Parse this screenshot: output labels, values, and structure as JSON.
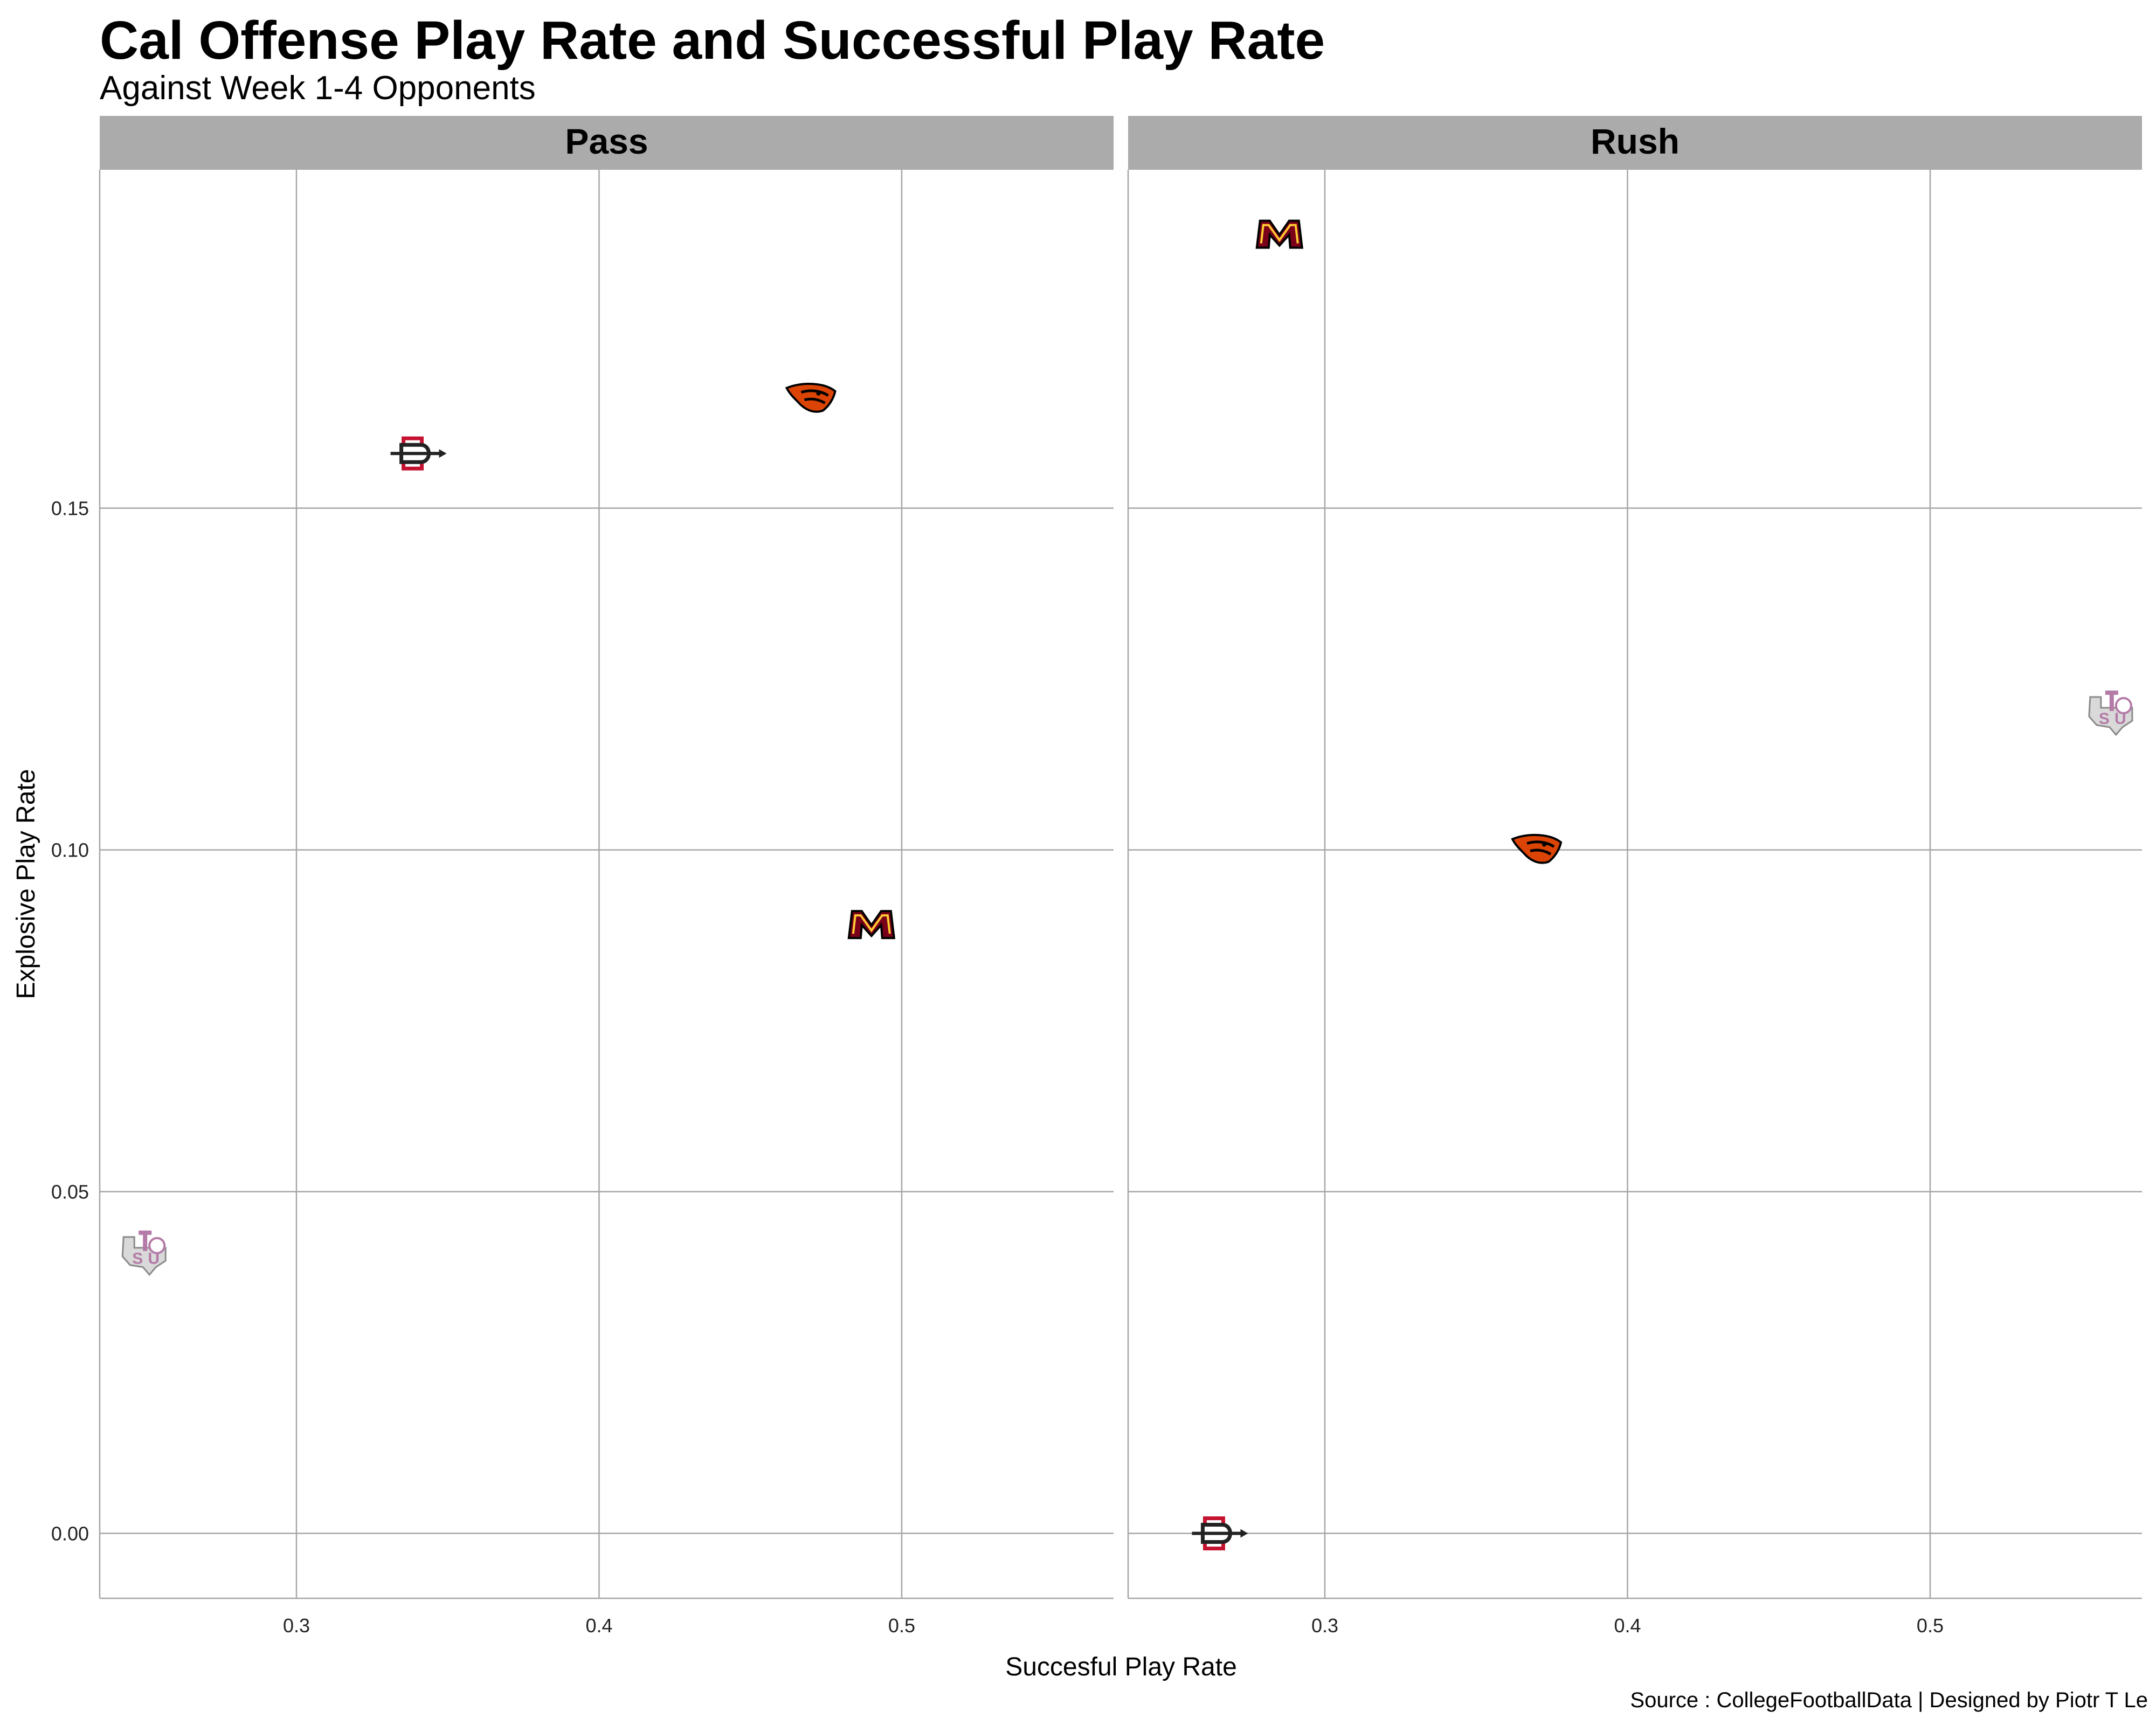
{
  "chart_data": {
    "type": "scatter",
    "title": "Cal Offense Play Rate and Successful Play Rate",
    "subtitle": "Against Week 1-4 Opponents",
    "xlabel": "Succesful Play Rate",
    "ylabel": "Explosive Play Rate",
    "caption": "Source : CollegeFootballData | Designed by Piotr T Le",
    "xlim": [
      0.235,
      0.57
    ],
    "ylim": [
      -0.0095,
      0.1995
    ],
    "x_ticks": [
      0.3,
      0.4,
      0.5
    ],
    "x_tick_labels": [
      "0.3",
      "0.4",
      "0.5"
    ],
    "y_ticks": [
      0.0,
      0.05,
      0.1,
      0.15
    ],
    "y_tick_labels": [
      "0.00",
      "0.05",
      "0.10",
      "0.15"
    ],
    "grid": true,
    "marker": "team-logo",
    "panels": [
      {
        "name": "Pass",
        "points": [
          {
            "team": "San Diego State",
            "logo": "sdsu-logo",
            "x": 0.34,
            "y": 0.158
          },
          {
            "team": "Oregon State",
            "logo": "oregon-state-logo",
            "x": 0.47,
            "y": 0.166
          },
          {
            "team": "Minnesota",
            "logo": "minnesota-logo",
            "x": 0.49,
            "y": 0.089
          },
          {
            "team": "Texas Southern",
            "logo": "texas-southern-logo",
            "x": 0.25,
            "y": 0.041
          }
        ]
      },
      {
        "name": "Rush",
        "points": [
          {
            "team": "Minnesota",
            "logo": "minnesota-logo",
            "x": 0.285,
            "y": 0.19
          },
          {
            "team": "Texas Southern",
            "logo": "texas-southern-logo",
            "x": 0.56,
            "y": 0.12
          },
          {
            "team": "Oregon State",
            "logo": "oregon-state-logo",
            "x": 0.37,
            "y": 0.1
          },
          {
            "team": "San Diego State",
            "logo": "sdsu-logo",
            "x": 0.265,
            "y": 0.0
          }
        ]
      }
    ],
    "colors": {
      "strip": "#ababab",
      "grid": "#a6a6a6",
      "oregon_state": "#dc4405",
      "minnesota": "#7a0019",
      "minnesota_gold": "#ffcc33",
      "sdsu": "#c41230",
      "texas_southern": "#b47ba8"
    }
  }
}
